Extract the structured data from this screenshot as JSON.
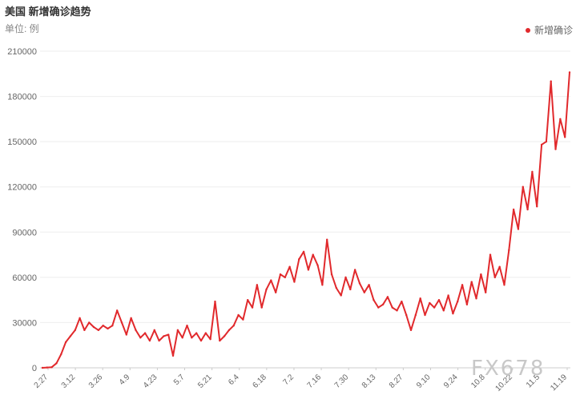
{
  "header": {
    "title": "美国 新增确诊趋势",
    "unit": "单位: 例"
  },
  "legend": {
    "label": "新增确诊",
    "color": "#e1292c"
  },
  "watermark": "FX678",
  "chart_data": {
    "type": "line",
    "title": "美国 新增确诊趋势",
    "ylabel": "单位: 例",
    "ylim": [
      0,
      210000
    ],
    "y_ticks": [
      0,
      30000,
      60000,
      90000,
      120000,
      150000,
      180000,
      210000
    ],
    "x_tick_labels": [
      "2.27",
      "3.12",
      "3.26",
      "4.9",
      "4.23",
      "5.7",
      "5.21",
      "6.4",
      "6.18",
      "7.2",
      "7.16",
      "7.30",
      "8.13",
      "8.27",
      "9.10",
      "9.24",
      "10.8",
      "10.22",
      "11.5",
      "11.19"
    ],
    "grid": true,
    "legend_position": "top-right",
    "series": [
      {
        "name": "新增确诊",
        "color": "#e1292c",
        "x": [
          "2.27",
          "3.5",
          "3.12",
          "3.19",
          "3.23",
          "3.26",
          "3.30",
          "4.2",
          "4.4",
          "4.7",
          "4.9",
          "4.11",
          "4.14",
          "4.17",
          "4.19",
          "4.21",
          "4.23",
          "4.24",
          "4.25",
          "4.28",
          "5.1",
          "5.3",
          "5.5",
          "5.7",
          "5.9",
          "5.11",
          "5.14",
          "5.17",
          "5.19",
          "5.21",
          "5.23",
          "5.26",
          "5.28",
          "5.31",
          "6.2",
          "6.4",
          "6.6",
          "6.8",
          "6.11",
          "6.14",
          "6.16",
          "6.18",
          "6.20",
          "6.22",
          "6.24",
          "6.26",
          "6.28",
          "7.1",
          "7.3",
          "7.5",
          "7.7",
          "7.9",
          "7.11",
          "7.13",
          "7.15",
          "7.17",
          "7.19",
          "7.21",
          "7.23",
          "7.25",
          "7.27",
          "7.29",
          "7.31",
          "8.2",
          "8.4",
          "8.6",
          "8.8",
          "8.10",
          "8.12",
          "8.14",
          "8.16",
          "8.18",
          "8.21",
          "8.24",
          "8.27",
          "8.30",
          "9.2",
          "9.5",
          "9.7",
          "9.9",
          "9.11",
          "9.13",
          "9.16",
          "9.19",
          "9.22",
          "9.25",
          "9.27",
          "9.30",
          "10.2",
          "10.5",
          "10.8",
          "10.10",
          "10.13",
          "10.16",
          "10.18",
          "10.20",
          "10.22",
          "10.25",
          "10.27",
          "10.29",
          "10.31",
          "11.2",
          "11.4",
          "11.6",
          "11.8",
          "11.10",
          "11.12",
          "11.14",
          "11.15",
          "11.16",
          "11.17",
          "11.18",
          "11.19",
          "11.20"
        ],
        "values": [
          0,
          200,
          400,
          3000,
          9000,
          17000,
          21000,
          25000,
          33000,
          25000,
          30000,
          27000,
          25000,
          28000,
          26000,
          28000,
          38000,
          30000,
          22000,
          33000,
          25000,
          20000,
          23000,
          18000,
          25000,
          18000,
          21000,
          22000,
          8000,
          25000,
          20000,
          28000,
          20000,
          23000,
          18000,
          23000,
          19000,
          44000,
          18000,
          21000,
          25000,
          28000,
          35000,
          32000,
          45000,
          40000,
          55000,
          40000,
          52000,
          58000,
          50000,
          62000,
          60000,
          67000,
          57000,
          72000,
          77000,
          65000,
          75000,
          68000,
          55000,
          85000,
          62000,
          53000,
          48000,
          60000,
          52000,
          65000,
          56000,
          50000,
          55000,
          45000,
          40000,
          42000,
          47000,
          40000,
          38000,
          44000,
          35000,
          25000,
          35000,
          46000,
          35000,
          43000,
          40000,
          45000,
          38000,
          48000,
          36000,
          44000,
          55000,
          42000,
          57000,
          46000,
          62000,
          50000,
          75000,
          60000,
          67000,
          55000,
          78000,
          105000,
          92000,
          120000,
          105000,
          130000,
          107000,
          148000,
          150000,
          190000,
          145000,
          165000,
          153000,
          196000
        ]
      }
    ]
  }
}
